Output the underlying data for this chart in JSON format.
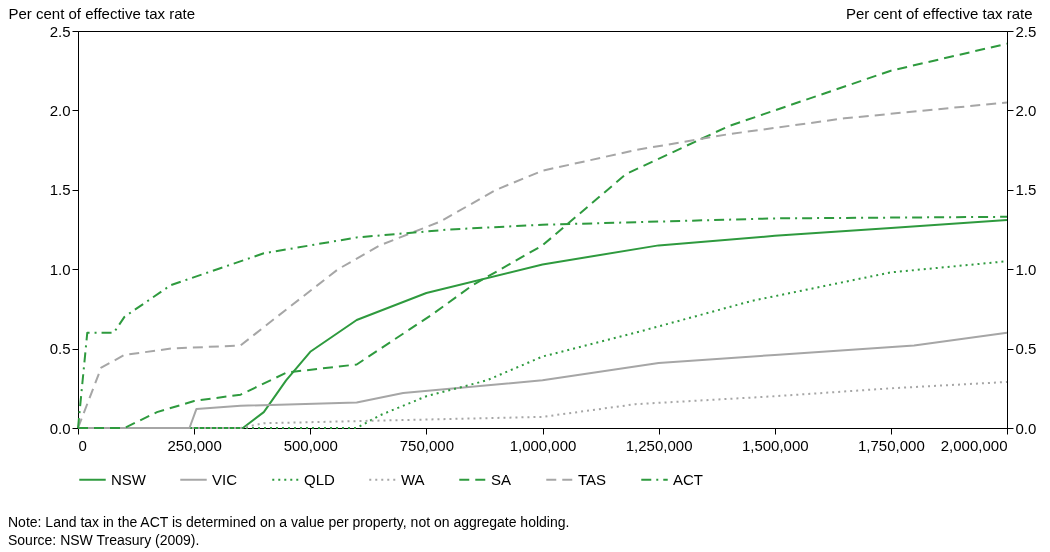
{
  "chart_data": {
    "type": "line",
    "ylabel": "Per cent of effective tax rate",
    "y2label": "Per cent of effective tax rate",
    "xlim": [
      0,
      2000000
    ],
    "xticks": [
      0,
      {
        "value": 250000,
        "label": "250,000"
      },
      {
        "value": 500000,
        "label": "500,000"
      },
      {
        "value": 750000,
        "label": "750,000"
      },
      {
        "value": 1000000,
        "label": "1,000,000"
      },
      {
        "value": 1250000,
        "label": "1,250,000"
      },
      {
        "value": 1500000,
        "label": "1,500,000"
      },
      {
        "value": 1750000,
        "label": "1,750,000"
      },
      {
        "value": 2000000,
        "label": "2,000,000"
      }
    ],
    "ylim": [
      0,
      2.5
    ],
    "yticks": [
      {
        "value": 0,
        "label": "0.0"
      },
      {
        "value": 0.5,
        "label": "0.5"
      },
      {
        "value": 1,
        "label": "1.0"
      },
      {
        "value": 1.5,
        "label": "1.5"
      },
      {
        "value": 2,
        "label": "2.0"
      },
      {
        "value": 2.5,
        "label": "2.5"
      }
    ],
    "y2lim": [
      0,
      2.5
    ],
    "y2ticks": [
      {
        "value": 0,
        "label": "0.0"
      },
      {
        "value": 0.5,
        "label": "0.5"
      },
      {
        "value": 1,
        "label": "1.0"
      },
      {
        "value": 1.5,
        "label": "1.5"
      },
      {
        "value": 2,
        "label": "2.0"
      },
      {
        "value": 2.5,
        "label": "2.5"
      }
    ],
    "grid": false,
    "legend": "bottom",
    "marker": "none",
    "series": [
      {
        "name": "NSW",
        "color": "#2e9a3e",
        "line_style": "solid",
        "x": [
          0,
          355000,
          400000,
          448000,
          500000,
          600000,
          750000,
          1000000,
          1250000,
          1500000,
          1750000,
          2000000
        ],
        "values": [
          0,
          0,
          0.1,
          0.3,
          0.48,
          0.68,
          0.85,
          1.03,
          1.15,
          1.21,
          1.26,
          1.31
        ]
      },
      {
        "name": "VIC",
        "color": "#a6a6a6",
        "line_style": "solid",
        "x": [
          0,
          240000,
          255000,
          350000,
          600000,
          700000,
          1000000,
          1250000,
          1500000,
          1800000,
          2000000
        ],
        "values": [
          0,
          0,
          0.12,
          0.14,
          0.16,
          0.22,
          0.3,
          0.41,
          0.46,
          0.52,
          0.6
        ]
      },
      {
        "name": "QLD",
        "color": "#2e9a3e",
        "line_style": "dotted",
        "x": [
          0,
          600000,
          650000,
          750000,
          880000,
          1000000,
          1200000,
          1450000,
          1750000,
          2000000
        ],
        "values": [
          0,
          0,
          0.08,
          0.2,
          0.3,
          0.45,
          0.6,
          0.8,
          0.98,
          1.05
        ]
      },
      {
        "name": "WA",
        "color": "#a6a6a6",
        "line_style": "dotted",
        "x": [
          0,
          350000,
          400000,
          700000,
          1000000,
          1200000,
          1500000,
          1750000,
          2000000
        ],
        "values": [
          0,
          0,
          0.03,
          0.05,
          0.07,
          0.15,
          0.2,
          0.25,
          0.29
        ]
      },
      {
        "name": "SA",
        "color": "#2e9a3e",
        "line_style": "dashed",
        "x": [
          0,
          100000,
          170000,
          250000,
          350000,
          450000,
          600000,
          765000,
          850000,
          1000000,
          1180000,
          1400000,
          1500000,
          1750000,
          2000000
        ],
        "values": [
          0,
          0,
          0.1,
          0.17,
          0.21,
          0.35,
          0.4,
          0.72,
          0.9,
          1.15,
          1.6,
          1.9,
          2.0,
          2.25,
          2.42
        ]
      },
      {
        "name": "TAS",
        "color": "#a6a6a6",
        "line_style": "dashed",
        "x": [
          0,
          50000,
          100000,
          200000,
          350000,
          450000,
          560000,
          650000,
          780000,
          900000,
          1000000,
          1200000,
          1400000,
          1650000,
          2000000
        ],
        "values": [
          0,
          0.38,
          0.46,
          0.5,
          0.52,
          0.75,
          1.0,
          1.15,
          1.3,
          1.5,
          1.62,
          1.75,
          1.85,
          1.95,
          2.05
        ]
      },
      {
        "name": "ACT",
        "color": "#2e9a3e",
        "line_style": "dashdot",
        "x": [
          0,
          20000,
          77000,
          100000,
          200000,
          300000,
          400000,
          600000,
          800000,
          1000000,
          1250000,
          1500000,
          2000000
        ],
        "values": [
          0,
          0.6,
          0.6,
          0.7,
          0.9,
          1.0,
          1.1,
          1.2,
          1.25,
          1.28,
          1.3,
          1.32,
          1.33
        ]
      }
    ],
    "annotations": [
      "Note: Land tax in the ACT is determined on a value per property, not on aggregate holding.",
      "Source: NSW Treasury (2009)."
    ]
  }
}
